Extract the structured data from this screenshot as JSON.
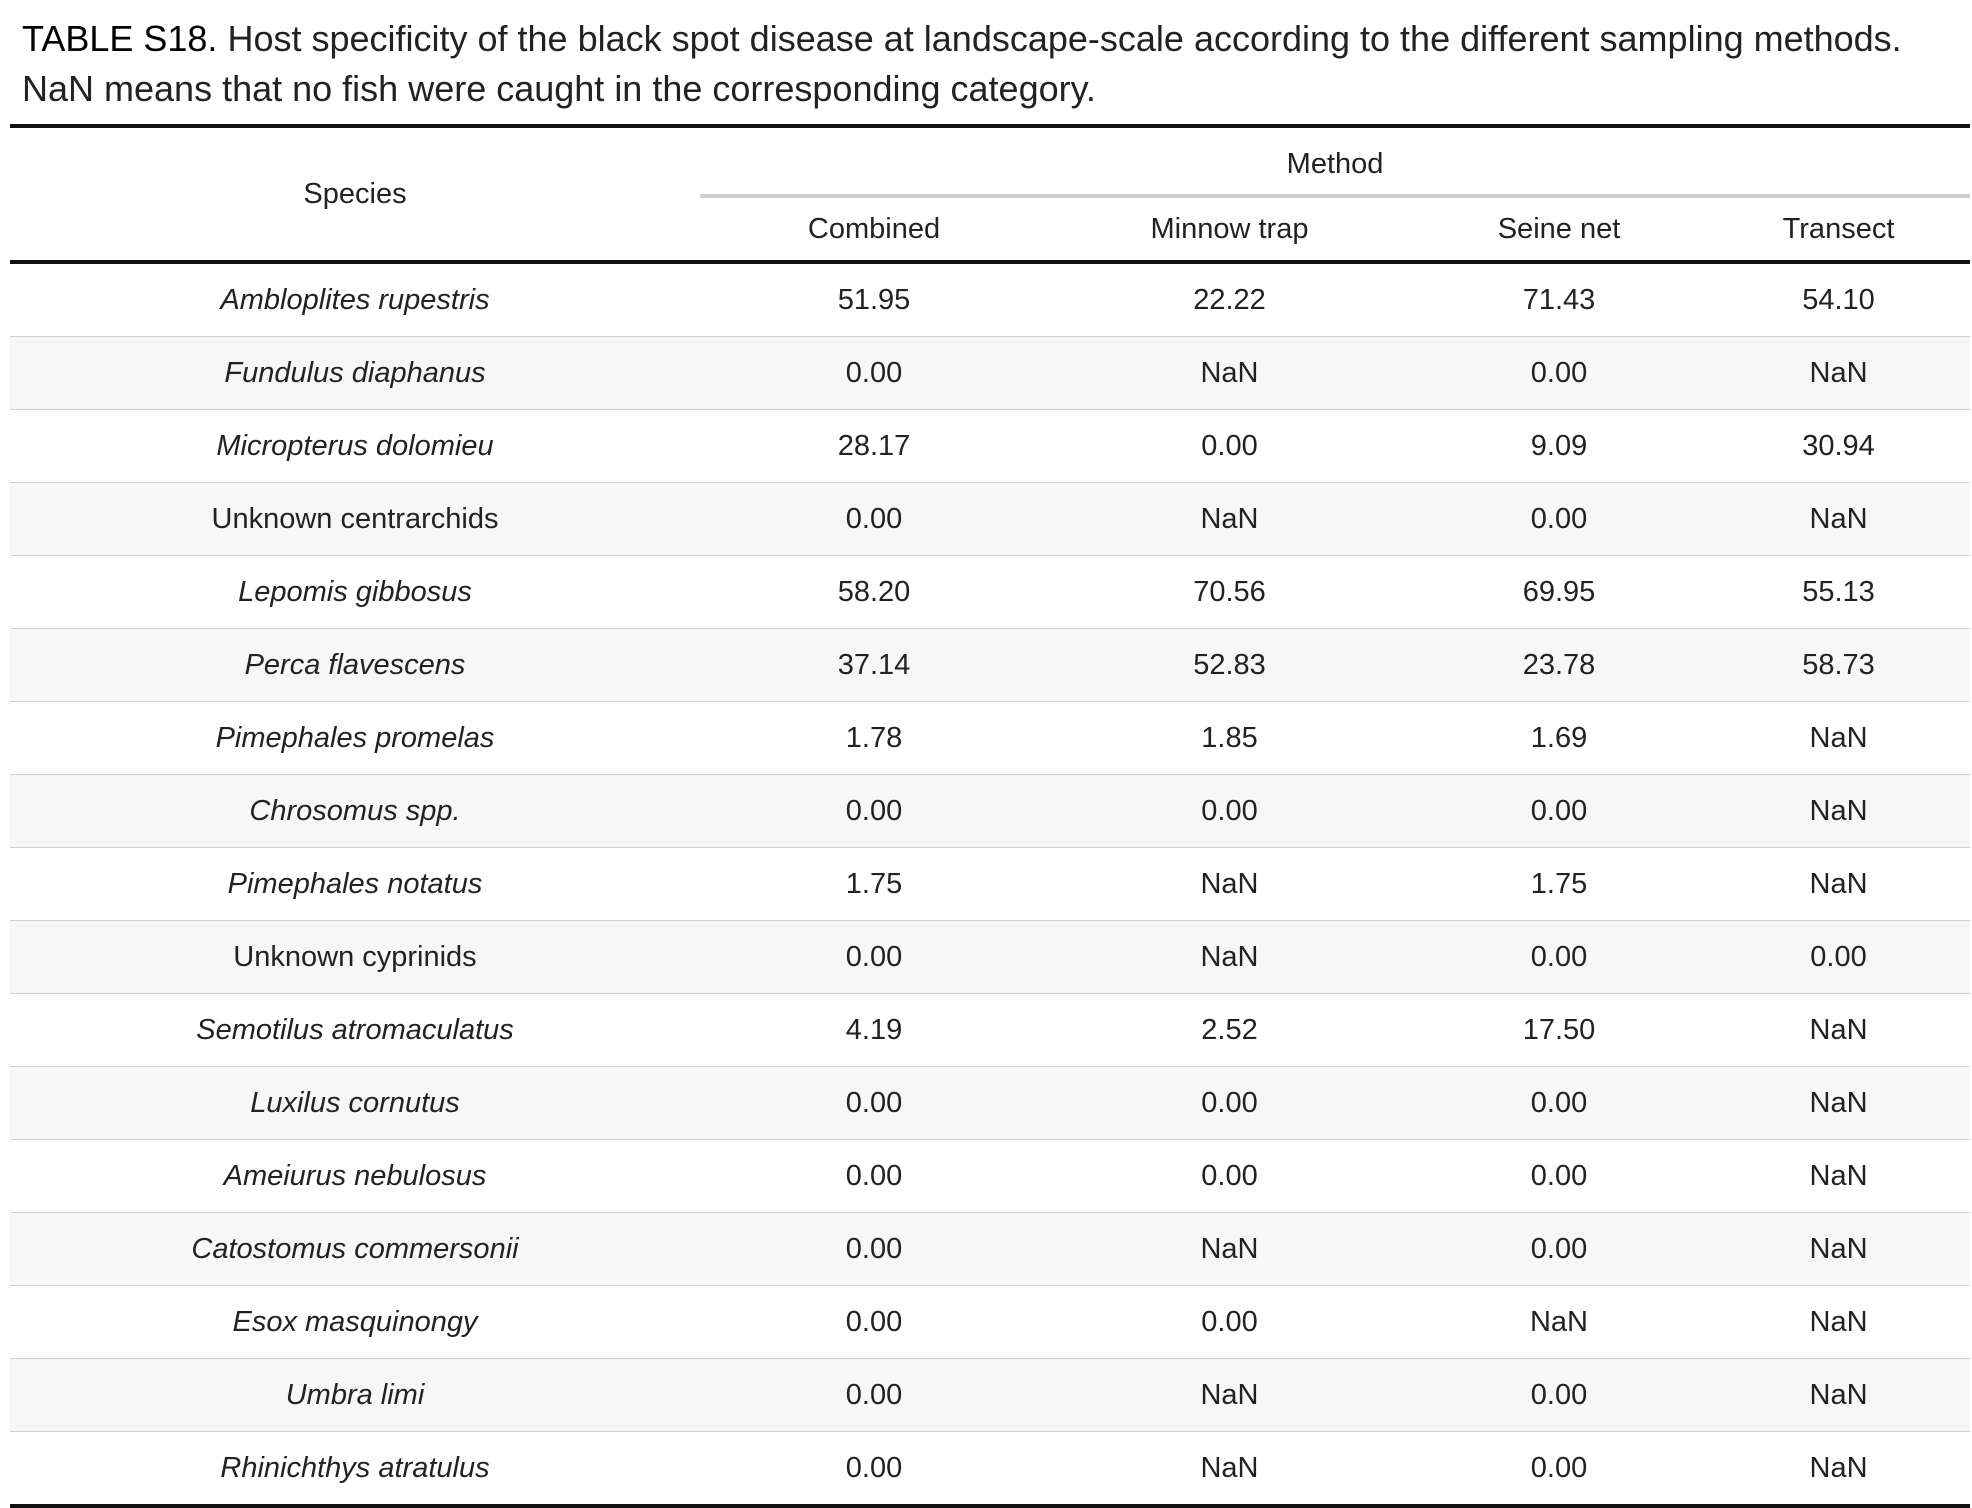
{
  "caption": {
    "label": "TABLE S18.",
    "text": " Host specificity of the black spot disease at landscape-scale according to the different sampling methods. NaN means that no fish were caught in the corresponding category."
  },
  "table": {
    "species_header": "Species",
    "group_header": "Method",
    "columns": [
      "Combined",
      "Minnow trap",
      "Seine net",
      "Transect"
    ],
    "rows": [
      {
        "species": "Ambloplites rupestris",
        "italic": true,
        "values": [
          "51.95",
          "22.22",
          "71.43",
          "54.10"
        ]
      },
      {
        "species": "Fundulus diaphanus",
        "italic": true,
        "values": [
          "0.00",
          "NaN",
          "0.00",
          "NaN"
        ]
      },
      {
        "species": "Micropterus dolomieu",
        "italic": true,
        "values": [
          "28.17",
          "0.00",
          "9.09",
          "30.94"
        ]
      },
      {
        "species": "Unknown centrarchids",
        "italic": false,
        "values": [
          "0.00",
          "NaN",
          "0.00",
          "NaN"
        ]
      },
      {
        "species": "Lepomis gibbosus",
        "italic": true,
        "values": [
          "58.20",
          "70.56",
          "69.95",
          "55.13"
        ]
      },
      {
        "species": "Perca flavescens",
        "italic": true,
        "values": [
          "37.14",
          "52.83",
          "23.78",
          "58.73"
        ]
      },
      {
        "species": "Pimephales promelas",
        "italic": true,
        "values": [
          "1.78",
          "1.85",
          "1.69",
          "NaN"
        ]
      },
      {
        "species": "Chrosomus spp.",
        "italic": true,
        "values": [
          "0.00",
          "0.00",
          "0.00",
          "NaN"
        ]
      },
      {
        "species": "Pimephales notatus",
        "italic": true,
        "values": [
          "1.75",
          "NaN",
          "1.75",
          "NaN"
        ]
      },
      {
        "species": "Unknown cyprinids",
        "italic": false,
        "values": [
          "0.00",
          "NaN",
          "0.00",
          "0.00"
        ]
      },
      {
        "species": "Semotilus atromaculatus",
        "italic": true,
        "values": [
          "4.19",
          "2.52",
          "17.50",
          "NaN"
        ]
      },
      {
        "species": "Luxilus cornutus",
        "italic": true,
        "values": [
          "0.00",
          "0.00",
          "0.00",
          "NaN"
        ]
      },
      {
        "species": "Ameiurus nebulosus",
        "italic": true,
        "values": [
          "0.00",
          "0.00",
          "0.00",
          "NaN"
        ]
      },
      {
        "species": "Catostomus commersonii",
        "italic": true,
        "values": [
          "0.00",
          "NaN",
          "0.00",
          "NaN"
        ]
      },
      {
        "species": "Esox masquinongy",
        "italic": true,
        "values": [
          "0.00",
          "0.00",
          "NaN",
          "NaN"
        ]
      },
      {
        "species": "Umbra limi",
        "italic": true,
        "values": [
          "0.00",
          "NaN",
          "0.00",
          "NaN"
        ]
      },
      {
        "species": "Rhinichthys atratulus",
        "italic": true,
        "values": [
          "0.00",
          "NaN",
          "0.00",
          "NaN"
        ]
      }
    ]
  }
}
